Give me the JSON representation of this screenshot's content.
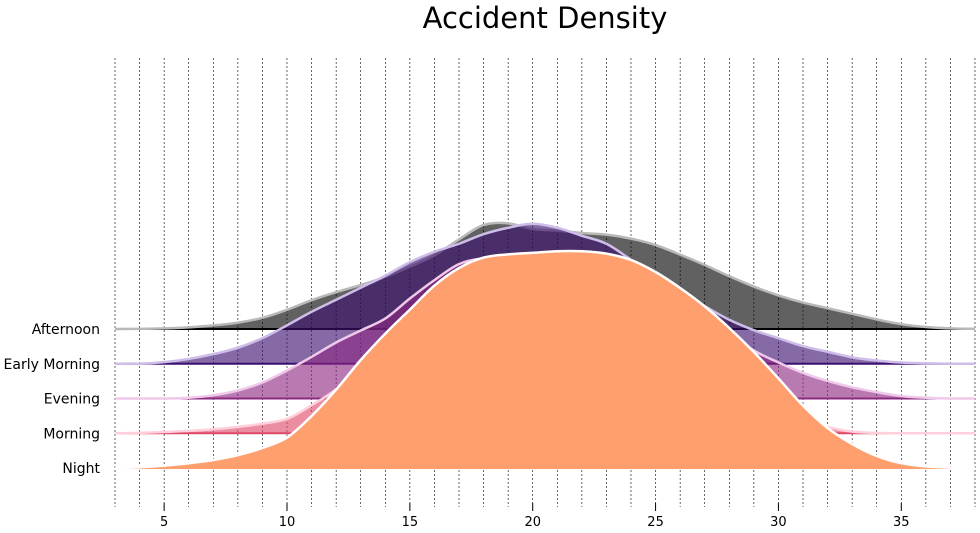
{
  "chart_data": {
    "type": "ridgeline",
    "title": "Accident Density",
    "xlabel": "",
    "ylabel": "",
    "xlim": [
      3,
      38
    ],
    "xticks": [
      5,
      10,
      15,
      20,
      25,
      30,
      35
    ],
    "grid": "vertical dashed lines at each integer x",
    "x": [
      3,
      4,
      5,
      6,
      7,
      8,
      9,
      10,
      11,
      12,
      13,
      14,
      15,
      16,
      17,
      18,
      19,
      20,
      21,
      22,
      23,
      24,
      25,
      26,
      27,
      28,
      29,
      30,
      31,
      32,
      33,
      34,
      35,
      36,
      37,
      38
    ],
    "series": [
      {
        "name": "Afternoon",
        "color": "#000000",
        "values": [
          0,
          0.002,
          0.008,
          0.02,
          0.045,
          0.08,
          0.14,
          0.24,
          0.36,
          0.46,
          0.55,
          0.65,
          0.78,
          0.92,
          1.12,
          1.3,
          1.32,
          1.25,
          1.23,
          1.2,
          1.18,
          1.13,
          1.05,
          0.93,
          0.8,
          0.66,
          0.53,
          0.42,
          0.33,
          0.26,
          0.19,
          0.12,
          0.06,
          0.025,
          0.008,
          0.002
        ]
      },
      {
        "name": "Early Morning",
        "color": "#3b0f70",
        "values": [
          0,
          0,
          0.02,
          0.06,
          0.12,
          0.2,
          0.32,
          0.48,
          0.65,
          0.8,
          0.95,
          1.1,
          1.27,
          1.4,
          1.5,
          1.62,
          1.7,
          1.75,
          1.7,
          1.6,
          1.5,
          1.3,
          1.1,
          0.9,
          0.72,
          0.55,
          0.42,
          0.32,
          0.22,
          0.15,
          0.08,
          0.04,
          0.015,
          0.005,
          0,
          0
        ]
      },
      {
        "name": "Evening",
        "color": "#8c2981",
        "values": [
          0,
          0,
          0,
          0.01,
          0.04,
          0.1,
          0.2,
          0.35,
          0.52,
          0.7,
          0.85,
          1.0,
          1.25,
          1.48,
          1.68,
          1.75,
          1.73,
          1.73,
          1.74,
          1.73,
          1.74,
          1.73,
          1.55,
          1.3,
          1.05,
          0.82,
          0.6,
          0.45,
          0.32,
          0.22,
          0.14,
          0.08,
          0.03,
          0.01,
          0,
          0
        ]
      },
      {
        "name": "Morning",
        "color": "#de4968",
        "values": [
          0,
          0.005,
          0.015,
          0.03,
          0.05,
          0.08,
          0.12,
          0.18,
          0.35,
          0.55,
          0.85,
          1.12,
          1.3,
          1.42,
          1.58,
          1.72,
          1.76,
          1.74,
          1.7,
          1.68,
          1.62,
          1.5,
          1.35,
          1.15,
          0.95,
          0.75,
          0.56,
          0.38,
          0.2,
          0.08,
          0.02,
          0.005,
          0,
          0,
          0,
          0
        ]
      },
      {
        "name": "Night",
        "color": "#fe9f6d",
        "values": [
          0,
          0.01,
          0.03,
          0.06,
          0.1,
          0.16,
          0.25,
          0.38,
          0.65,
          0.98,
          1.35,
          1.68,
          1.98,
          2.28,
          2.5,
          2.63,
          2.67,
          2.69,
          2.71,
          2.71,
          2.68,
          2.6,
          2.45,
          2.25,
          2.02,
          1.75,
          1.45,
          1.12,
          0.78,
          0.5,
          0.3,
          0.15,
          0.06,
          0.02,
          0.005,
          0
        ]
      }
    ]
  }
}
